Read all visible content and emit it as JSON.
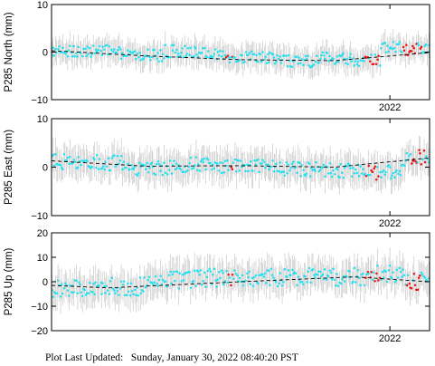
{
  "footer": {
    "label": "Plot Last Updated:",
    "value": "Sunday, January 30, 2022 08:40:20 PST"
  },
  "colors": {
    "data_point": "#22e0f0",
    "recent_point": "#ee1111",
    "error_bar": "#c8c8c8",
    "trend_line": "#000000",
    "frame": "#000000"
  },
  "chart_data": [
    {
      "type": "scatter",
      "ylabel": "P285 North (mm)",
      "ylim": [
        -10,
        10
      ],
      "yticks": [
        "10",
        "0",
        "−10"
      ],
      "xtick_label": "2022",
      "trend": [
        {
          "t": 0.0,
          "y": 0.3
        },
        {
          "t": 0.25,
          "y": -0.8
        },
        {
          "t": 0.5,
          "y": -1.6
        },
        {
          "t": 0.75,
          "y": -1.8
        },
        {
          "t": 1.0,
          "y": -0.1
        }
      ],
      "segments": [
        {
          "t0": 0.0,
          "t1": 0.06,
          "y": 0.0
        },
        {
          "t0": 0.06,
          "t1": 0.18,
          "y": 0.5
        },
        {
          "t0": 0.18,
          "t1": 0.3,
          "y": -0.5
        },
        {
          "t0": 0.3,
          "t1": 0.4,
          "y": 1.0
        },
        {
          "t0": 0.4,
          "t1": 0.47,
          "y": 0.3
        },
        {
          "t0": 0.47,
          "t1": 0.6,
          "y": -0.8
        },
        {
          "t0": 0.6,
          "t1": 0.7,
          "y": -2.0
        },
        {
          "t0": 0.7,
          "t1": 0.8,
          "y": -1.0
        },
        {
          "t0": 0.8,
          "t1": 0.87,
          "y": -2.2
        },
        {
          "t0": 0.87,
          "t1": 0.93,
          "y": 2.0
        },
        {
          "t0": 0.93,
          "t1": 1.0,
          "y": 1.2
        }
      ],
      "recent": [
        {
          "t0": 0.46,
          "t1": 0.48
        },
        {
          "t0": 0.83,
          "t1": 0.87
        },
        {
          "t0": 0.93,
          "t1": 0.98
        }
      ],
      "noise": 1.3,
      "err": 2.4
    },
    {
      "type": "scatter",
      "ylabel": "P285 East (mm)",
      "ylim": [
        -10,
        10
      ],
      "yticks": [
        "10",
        "0",
        "−10"
      ],
      "xtick_label": "2022",
      "trend": [
        {
          "t": 0.0,
          "y": 1.3
        },
        {
          "t": 0.25,
          "y": 0.2
        },
        {
          "t": 0.5,
          "y": 0.3
        },
        {
          "t": 0.75,
          "y": 0.0
        },
        {
          "t": 1.0,
          "y": 1.9
        }
      ],
      "segments": [
        {
          "t0": 0.0,
          "t1": 0.08,
          "y": 1.0
        },
        {
          "t0": 0.08,
          "t1": 0.2,
          "y": 1.0
        },
        {
          "t0": 0.2,
          "t1": 0.35,
          "y": -0.5
        },
        {
          "t0": 0.35,
          "t1": 0.45,
          "y": 0.8
        },
        {
          "t0": 0.45,
          "t1": 0.6,
          "y": 0.0
        },
        {
          "t0": 0.6,
          "t1": 0.75,
          "y": -0.8
        },
        {
          "t0": 0.75,
          "t1": 0.85,
          "y": -1.5
        },
        {
          "t0": 0.85,
          "t1": 0.93,
          "y": -2.5
        },
        {
          "t0": 0.93,
          "t1": 1.0,
          "y": 2.2
        }
      ],
      "recent": [
        {
          "t0": 0.47,
          "t1": 0.48
        },
        {
          "t0": 0.83,
          "t1": 0.87
        },
        {
          "t0": 0.95,
          "t1": 0.99
        }
      ],
      "noise": 1.6,
      "err": 3.0
    },
    {
      "type": "scatter",
      "ylabel": "P285 Up (mm)",
      "ylim": [
        -20,
        20
      ],
      "yticks": [
        "20",
        "10",
        "0",
        "−10",
        "−20"
      ],
      "xtick_label": "2022",
      "trend": [
        {
          "t": 0.0,
          "y": -1.5
        },
        {
          "t": 0.15,
          "y": -2.5
        },
        {
          "t": 0.5,
          "y": 0.0
        },
        {
          "t": 0.8,
          "y": 2.0
        },
        {
          "t": 1.0,
          "y": 0.0
        }
      ],
      "segments": [
        {
          "t0": 0.0,
          "t1": 0.1,
          "y": -4.0
        },
        {
          "t0": 0.1,
          "t1": 0.25,
          "y": -2.0
        },
        {
          "t0": 0.25,
          "t1": 0.4,
          "y": 2.0
        },
        {
          "t0": 0.4,
          "t1": 0.55,
          "y": 3.0
        },
        {
          "t0": 0.55,
          "t1": 0.75,
          "y": 2.5
        },
        {
          "t0": 0.75,
          "t1": 0.85,
          "y": 2.0
        },
        {
          "t0": 0.85,
          "t1": 0.93,
          "y": 4.0
        },
        {
          "t0": 0.93,
          "t1": 1.0,
          "y": 0.5
        }
      ],
      "recent": [
        {
          "t0": 0.46,
          "t1": 0.48
        },
        {
          "t0": 0.83,
          "t1": 0.87
        },
        {
          "t0": 0.93,
          "t1": 0.98
        }
      ],
      "noise": 3.8,
      "err": 6.0
    }
  ]
}
